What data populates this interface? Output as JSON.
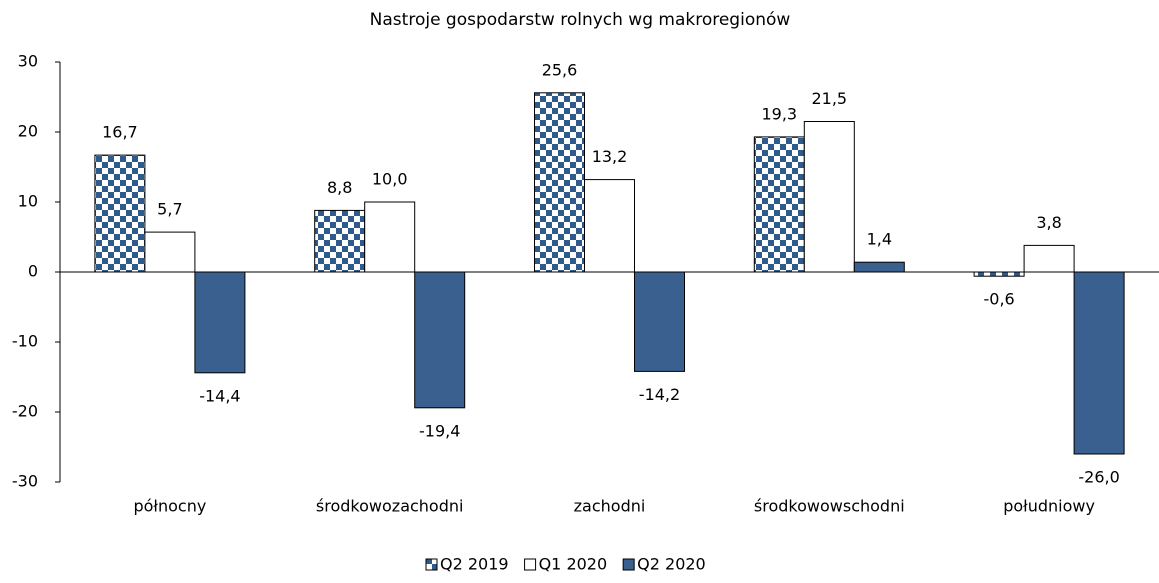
{
  "chart_data": {
    "type": "bar",
    "title": "Nastroje gospodarstw rolnych wg makroregionów",
    "categories": [
      "północny",
      "środkowozachodni",
      "zachodni",
      "środkowowschodni",
      "południowy"
    ],
    "series": [
      {
        "name": "Q2 2019",
        "color": "#2e5a8c",
        "pattern": "checkered",
        "values": [
          16.7,
          8.8,
          25.6,
          19.3,
          -0.6
        ],
        "value_labels": [
          "16,7",
          "8,8",
          "25,6",
          "19,3",
          "-0,6"
        ]
      },
      {
        "name": "Q1 2020",
        "color": "#ffffff",
        "values": [
          5.7,
          10.0,
          13.2,
          21.5,
          3.8
        ],
        "value_labels": [
          "5,7",
          "10,0",
          "13,2",
          "21,5",
          "3,8"
        ]
      },
      {
        "name": "Q2 2020",
        "color": "#3a6090",
        "values": [
          -14.4,
          -19.4,
          -14.2,
          1.4,
          -26.0
        ],
        "value_labels": [
          "-14,4",
          "-19,4",
          "-14,2",
          "1,4",
          "-26,0"
        ]
      }
    ],
    "ylim": [
      -30,
      30
    ],
    "yticks": [
      -30,
      -20,
      -10,
      0,
      10,
      20,
      30
    ],
    "legend": "bottom"
  }
}
